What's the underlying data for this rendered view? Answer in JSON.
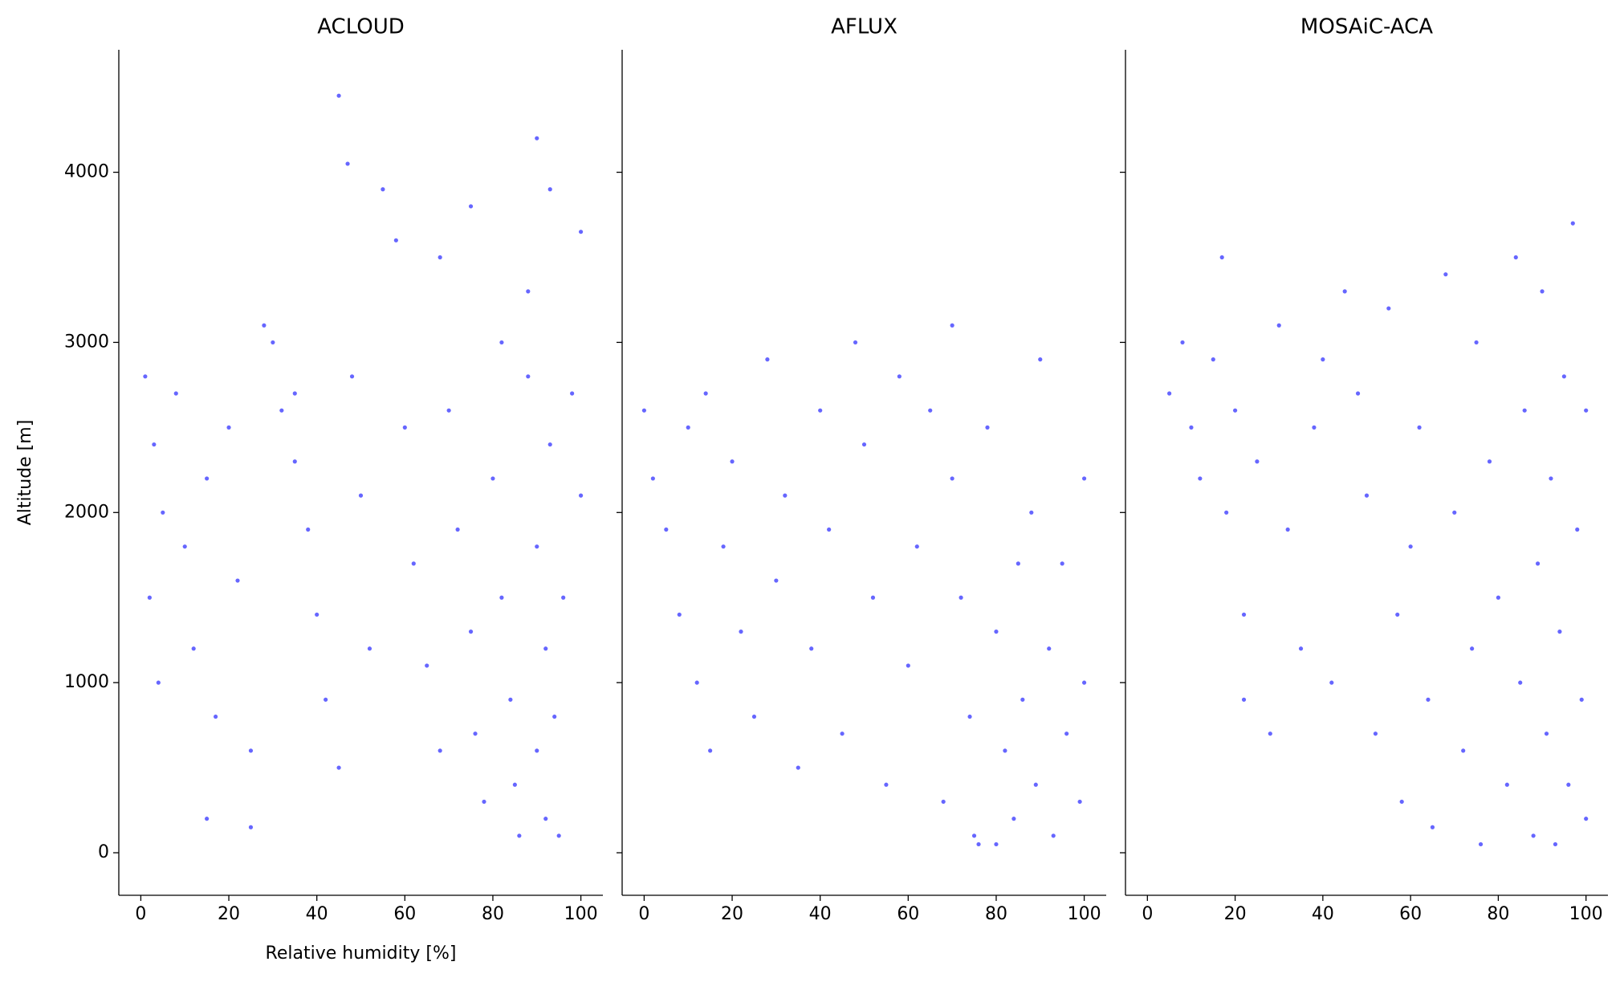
{
  "chart_data": [
    {
      "type": "scatter",
      "title": "ACLOUD",
      "x_label": "Relative humidity [%]",
      "y_label": "Altitude [m]",
      "color": "#0000ff",
      "xlim": [
        -5,
        105
      ],
      "ylim": [
        -250,
        4720
      ],
      "xticks": [
        0,
        20,
        40,
        60,
        80,
        100
      ],
      "yticks": [
        0,
        1000,
        2000,
        3000,
        4000
      ],
      "x": [
        1,
        3,
        5,
        2,
        4,
        8,
        10,
        12,
        15,
        17,
        15,
        20,
        22,
        25,
        25,
        30,
        32,
        35,
        38,
        40,
        42,
        45,
        48,
        50,
        52,
        47,
        55,
        58,
        60,
        62,
        65,
        68,
        70,
        72,
        75,
        76,
        78,
        80,
        82,
        84,
        85,
        86,
        88,
        88,
        90,
        90,
        92,
        92,
        93,
        93,
        94,
        95,
        96,
        98,
        100,
        90,
        75,
        68,
        82,
        100,
        45,
        35,
        28
      ],
      "values": [
        2800,
        2400,
        2000,
        1500,
        1000,
        2700,
        1800,
        1200,
        2200,
        800,
        200,
        2500,
        1600,
        600,
        150,
        3000,
        2600,
        2300,
        1900,
        1400,
        900,
        500,
        2800,
        2100,
        1200,
        4050,
        3900,
        3600,
        2500,
        1700,
        1100,
        600,
        2600,
        1900,
        1300,
        700,
        300,
        2200,
        1500,
        900,
        400,
        100,
        2800,
        3300,
        1800,
        600,
        1200,
        200,
        3900,
        2400,
        800,
        100,
        1500,
        2700,
        2100,
        4200,
        3800,
        3500,
        3000,
        3650,
        4450,
        2700,
        3100
      ]
    },
    {
      "type": "scatter",
      "title": "AFLUX",
      "color": "#0000ff",
      "sharey": true,
      "xlim": [
        -5,
        105
      ],
      "ylim": [
        -250,
        4720
      ],
      "xticks": [
        0,
        20,
        40,
        60,
        80,
        100
      ],
      "yticks": [
        0,
        1000,
        2000,
        3000,
        4000
      ],
      "x": [
        0,
        2,
        5,
        8,
        10,
        12,
        14,
        15,
        18,
        20,
        22,
        25,
        28,
        30,
        32,
        35,
        38,
        40,
        42,
        45,
        48,
        50,
        52,
        55,
        58,
        60,
        62,
        65,
        68,
        70,
        70,
        72,
        74,
        75,
        76,
        78,
        80,
        82,
        84,
        85,
        86,
        88,
        89,
        90,
        92,
        93,
        95,
        96,
        100,
        100,
        99,
        80
      ],
      "values": [
        2600,
        2200,
        1900,
        1400,
        2500,
        1000,
        2700,
        600,
        1800,
        2300,
        1300,
        800,
        2900,
        1600,
        2100,
        500,
        1200,
        2600,
        1900,
        700,
        3000,
        2400,
        1500,
        400,
        2800,
        1100,
        1800,
        2600,
        300,
        2200,
        3100,
        1500,
        800,
        100,
        50,
        2500,
        1300,
        600,
        200,
        1700,
        900,
        2000,
        400,
        2900,
        1200,
        100,
        1700,
        700,
        1000,
        2200,
        300,
        50
      ]
    },
    {
      "type": "scatter",
      "title": "MOSAiC-ACA",
      "color": "#0000ff",
      "sharey": true,
      "xlim": [
        -5,
        105
      ],
      "ylim": [
        -250,
        4720
      ],
      "xticks": [
        0,
        20,
        40,
        60,
        80,
        100
      ],
      "yticks": [
        0,
        1000,
        2000,
        3000,
        4000
      ],
      "x": [
        5,
        8,
        10,
        12,
        15,
        18,
        20,
        17,
        22,
        22,
        25,
        28,
        30,
        32,
        35,
        38,
        40,
        42,
        45,
        48,
        50,
        52,
        55,
        57,
        58,
        60,
        62,
        64,
        65,
        68,
        70,
        72,
        74,
        75,
        76,
        78,
        80,
        82,
        84,
        85,
        86,
        88,
        89,
        90,
        91,
        92,
        93,
        94,
        95,
        96,
        97,
        98,
        99,
        100,
        100
      ],
      "values": [
        2700,
        3000,
        2500,
        2200,
        2900,
        2000,
        2600,
        3500,
        1400,
        900,
        2300,
        700,
        3100,
        1900,
        1200,
        2500,
        2900,
        1000,
        3300,
        2700,
        2100,
        700,
        3200,
        1400,
        300,
        1800,
        2500,
        900,
        150,
        3400,
        2000,
        600,
        1200,
        3000,
        50,
        2300,
        1500,
        400,
        3500,
        1000,
        2600,
        100,
        1700,
        3300,
        700,
        2200,
        50,
        1300,
        2800,
        400,
        3700,
        1900,
        900,
        200,
        2600
      ]
    }
  ]
}
